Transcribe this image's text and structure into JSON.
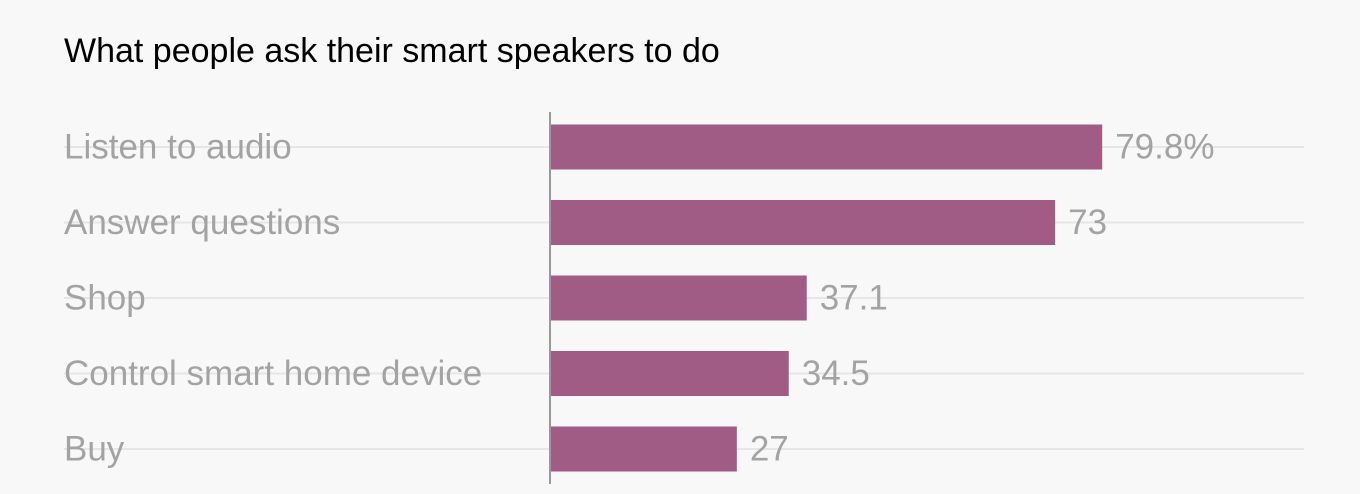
{
  "chart_data": {
    "type": "bar",
    "orientation": "horizontal",
    "title": "What people ask their smart speakers to do",
    "categories": [
      "Listen to audio",
      "Answer questions",
      "Shop",
      "Control smart home device",
      "Buy"
    ],
    "values": [
      79.8,
      73,
      37.1,
      34.5,
      27
    ],
    "value_labels": [
      "79.8%",
      "73",
      "37.1",
      "34.5",
      "27"
    ],
    "xlim": [
      0,
      100
    ],
    "grid": true,
    "bar_color": "#a05c85",
    "label_color": "#a3a3a3",
    "gridline_color": "#e6e6e6",
    "axis_color": "#999999"
  }
}
